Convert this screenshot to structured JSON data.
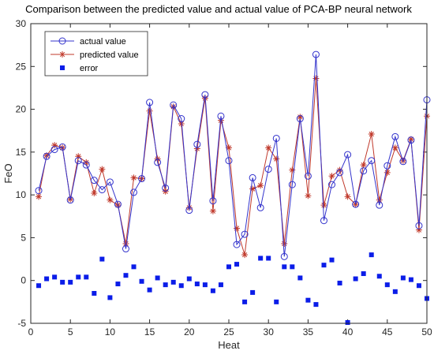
{
  "chart_data": {
    "type": "line",
    "title": "Comparison between the predicted value and actual value of PCA-BP neural network",
    "xlabel": "Heat",
    "ylabel": "FeO",
    "xlim": [
      0,
      50
    ],
    "ylim": [
      -5,
      30
    ],
    "xticks": [
      0,
      5,
      10,
      15,
      20,
      25,
      30,
      35,
      40,
      45,
      50
    ],
    "yticks": [
      -5,
      0,
      5,
      10,
      15,
      20,
      25,
      30
    ],
    "grid": false,
    "legend_position": "top-left",
    "x": [
      1,
      2,
      3,
      4,
      5,
      6,
      7,
      8,
      9,
      10,
      11,
      12,
      13,
      14,
      15,
      16,
      17,
      18,
      19,
      20,
      21,
      22,
      23,
      24,
      25,
      26,
      27,
      28,
      29,
      30,
      31,
      32,
      33,
      34,
      35,
      36,
      37,
      38,
      39,
      40,
      41,
      42,
      43,
      44,
      45,
      46,
      47,
      48,
      49,
      50
    ],
    "series": [
      {
        "name": "actual value",
        "style": "line-circle",
        "color": "#3333cc",
        "values": [
          10.5,
          14.5,
          15.3,
          15.6,
          9.4,
          14.0,
          13.5,
          11.7,
          10.6,
          11.5,
          8.9,
          3.7,
          10.3,
          11.9,
          20.8,
          13.8,
          10.8,
          20.5,
          18.9,
          8.2,
          15.9,
          21.7,
          9.3,
          19.2,
          14.0,
          4.2,
          5.4,
          12.0,
          8.5,
          13.0,
          16.6,
          2.8,
          11.2,
          18.9,
          12.2,
          26.4,
          7.0,
          11.2,
          12.6,
          14.7,
          8.9,
          12.8,
          14.0,
          8.8,
          13.4,
          16.8,
          13.9,
          16.4,
          6.4,
          21.1
        ]
      },
      {
        "name": "predicted value",
        "style": "line-star",
        "color": "#c0392b",
        "values": [
          9.8,
          14.6,
          15.8,
          15.5,
          9.5,
          14.5,
          13.8,
          10.2,
          13.0,
          9.4,
          8.8,
          4.3,
          12.0,
          11.9,
          19.8,
          14.2,
          10.4,
          20.3,
          18.3,
          8.5,
          15.4,
          21.3,
          8.1,
          18.7,
          15.5,
          6.1,
          3.0,
          10.7,
          11.1,
          15.5,
          14.2,
          4.3,
          12.9,
          19.1,
          9.9,
          23.6,
          8.8,
          12.2,
          12.9,
          9.8,
          8.9,
          13.5,
          17.1,
          9.4,
          12.6,
          15.5,
          14.0,
          16.5,
          5.9,
          19.2
        ]
      },
      {
        "name": "error",
        "style": "square-marker",
        "color": "#0b1de8",
        "values": [
          -0.6,
          0.2,
          0.4,
          -0.2,
          -0.2,
          0.4,
          0.4,
          -1.5,
          2.5,
          -2.0,
          -0.4,
          0.6,
          1.6,
          -0.1,
          -1.1,
          0.3,
          -0.5,
          -0.2,
          -0.6,
          0.2,
          -0.4,
          -0.5,
          -1.2,
          -0.5,
          1.6,
          1.9,
          -2.5,
          -1.4,
          2.6,
          2.6,
          -2.5,
          1.6,
          1.6,
          0.3,
          -2.3,
          -2.8,
          1.8,
          2.4,
          -0.3,
          -5.0,
          0.2,
          0.8,
          3.0,
          0.5,
          -0.5,
          -1.3,
          0.3,
          0.1,
          -0.6,
          -2.1
        ]
      }
    ]
  }
}
